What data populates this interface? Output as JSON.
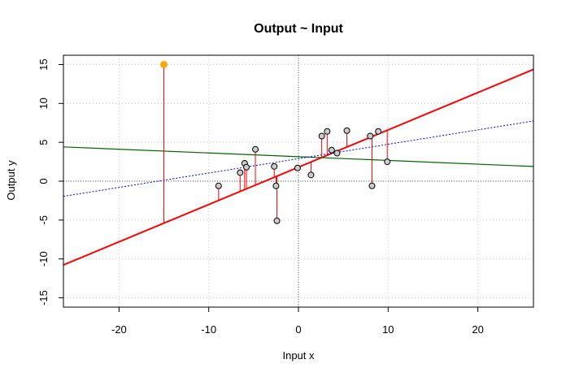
{
  "chart_data": {
    "type": "scatter",
    "title": "Output ~ Input",
    "xlabel": "Input x",
    "ylabel": "Output y",
    "xlim": [
      -26.2,
      26.2
    ],
    "ylim": [
      -16.2,
      16.2
    ],
    "xticks": [
      -20,
      -10,
      0,
      10,
      20
    ],
    "yticks": [
      -15,
      -10,
      -5,
      0,
      5,
      10,
      15
    ],
    "grid": true,
    "reference_lines": {
      "x": 0,
      "y": 0
    },
    "points": [
      {
        "x": -8.9,
        "y": -0.6
      },
      {
        "x": -6.5,
        "y": 1.1
      },
      {
        "x": -6.0,
        "y": 2.3
      },
      {
        "x": -5.8,
        "y": 1.8
      },
      {
        "x": -4.8,
        "y": 4.1
      },
      {
        "x": -2.7,
        "y": 1.9
      },
      {
        "x": -2.5,
        "y": -0.6
      },
      {
        "x": -2.4,
        "y": -5.1
      },
      {
        "x": -0.1,
        "y": 1.7
      },
      {
        "x": 1.4,
        "y": 0.8
      },
      {
        "x": 2.6,
        "y": 5.8
      },
      {
        "x": 3.2,
        "y": 6.4
      },
      {
        "x": 3.7,
        "y": 4.0
      },
      {
        "x": 4.3,
        "y": 3.6
      },
      {
        "x": 5.4,
        "y": 6.5
      },
      {
        "x": 8.0,
        "y": 5.8
      },
      {
        "x": 8.2,
        "y": -0.6
      },
      {
        "x": 8.9,
        "y": 6.4
      },
      {
        "x": 9.9,
        "y": 2.5
      }
    ],
    "outlier": {
      "x": -15.0,
      "y": 15.0
    },
    "fit_lines": [
      {
        "intercept": 1.8,
        "slope": 0.48,
        "color": "#ff0000",
        "style": "solid"
      },
      {
        "intercept": 3.15,
        "slope": -0.048,
        "color": "#006400",
        "style": "solid"
      },
      {
        "intercept": 2.9,
        "slope": 0.185,
        "color": "#0000ff",
        "style": "dotted"
      }
    ],
    "residual_line": {
      "intercept": 1.8,
      "slope": 0.48
    },
    "colors": {
      "residual": "#ff0000",
      "point_fill": "#cccccc",
      "outlier": "#ffa500",
      "grid": "#cccccc"
    }
  }
}
